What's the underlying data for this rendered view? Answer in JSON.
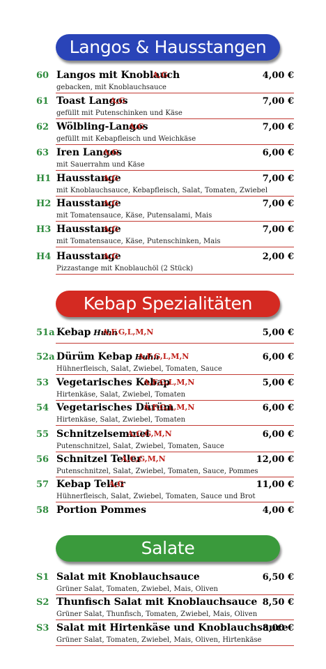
{
  "sections": [
    {
      "title": "Langos & Hausstangen",
      "color": "#2a44b8",
      "items": [
        {
          "num": "60",
          "name": "Langos mit Knoblauch",
          "sub": "",
          "allergens": "A,G",
          "price": "4,00 €",
          "desc": "gebacken, mit Knoblauchsauce"
        },
        {
          "num": "61",
          "name": "Toast Langos",
          "sub": "",
          "allergens": "A,G",
          "price": "7,00 €",
          "desc": "gefüllt mit Putenschinken und Käse"
        },
        {
          "num": "62",
          "name": "Wölbling-Langos",
          "sub": "",
          "allergens": "A,G",
          "price": "7,00 €",
          "desc": "gefüllt mit Kebapfleisch und Weichkäse"
        },
        {
          "num": "63",
          "name": "Iren Langos",
          "sub": "",
          "allergens": "A,G",
          "price": "6,00 €",
          "desc": "mit Sauerrahm und Käse"
        },
        {
          "num": "H1",
          "name": "Hausstange",
          "sub": "",
          "allergens": "A,G",
          "price": "7,00 €",
          "desc": "mit Knoblauchsauce, Kebapfleisch, Salat, Tomaten, Zwiebel"
        },
        {
          "num": "H2",
          "name": "Hausstange",
          "sub": "",
          "allergens": "A,G",
          "price": "7,00 €",
          "desc": "mit Tomatensauce, Käse, Putensalami, Mais"
        },
        {
          "num": "H3",
          "name": "Hausstange",
          "sub": "",
          "allergens": "A,G",
          "price": "7,00 €",
          "desc": "mit Tomatensauce, Käse, Putenschinken, Mais"
        },
        {
          "num": "H4",
          "name": "Hausstange",
          "sub": "",
          "allergens": "A,G",
          "price": "2,00 €",
          "desc": "Pizzastange mit Knoblauchöl (2 Stück)"
        }
      ]
    },
    {
      "title": "Kebap Spezialitäten",
      "color": "#d42a22",
      "items": [
        {
          "num": "51a",
          "name": "Kebap",
          "sub": "Huhn",
          "allergens": "A,F,G,L,M,N",
          "price": "5,00 €",
          "desc": ""
        },
        {
          "num": "52a",
          "name": "Dürüm Kebap",
          "sub": "Huhn",
          "allergens": "A,F,G,L,M,N",
          "price": "6,00 €",
          "desc": "Hühnerfleisch, Salat, Zwiebel, Tomaten, Sauce"
        },
        {
          "num": "53",
          "name": "Vegetarisches Kebap",
          "sub": "",
          "allergens": "A,F,G,L,M,N",
          "price": "5,00 €",
          "desc": "Hirtenkäse, Salat, Zwiebel, Tomaten"
        },
        {
          "num": "54",
          "name": "Vegetarisches Dürüm",
          "sub": "",
          "allergens": "A,F,G,L,M,N",
          "price": "6,00 €",
          "desc": "Hirtenkäse, Salat, Zwiebel, Tomaten"
        },
        {
          "num": "55",
          "name": "Schnitzelsemmel",
          "sub": "",
          "allergens": "A,C,G,M,N",
          "price": "6,00 €",
          "desc": "Putenschnitzel, Salat, Zwiebel, Tomaten, Sauce"
        },
        {
          "num": "56",
          "name": "Schnitzel Teller",
          "sub": "",
          "allergens": "A,C,G,M,N",
          "price": "12,00 €",
          "desc": "Putenschnitzel, Salat, Zwiebel, Tomaten, Sauce, Pommes"
        },
        {
          "num": "57",
          "name": "Kebap Teller",
          "sub": "",
          "allergens": "A,G",
          "price": "11,00 €",
          "desc": "Hühnerfleisch, Salat, Zwiebel, Tomaten, Sauce und Brot"
        },
        {
          "num": "58",
          "name": "Portion Pommes",
          "sub": "",
          "allergens": "",
          "price": "4,00 €",
          "desc": ""
        }
      ]
    },
    {
      "title": "Salate",
      "color": "#3a9a3c",
      "items": [
        {
          "num": "S1",
          "name": "Salat mit Knoblauchsauce",
          "sub": "",
          "allergens": "",
          "price": "6,50 €",
          "desc": "Grüner Salat, Tomaten, Zwiebel, Mais, Oliven"
        },
        {
          "num": "S2",
          "name": "Thunfisch Salat mit Knoblauchsauce",
          "sub": "",
          "allergens": "",
          "price": "8,50 €",
          "desc": "Grüner Salat, Thunfisch, Tomaten, Zwiebel, Mais, Oliven"
        },
        {
          "num": "S3",
          "name": "Salat mit Hirtenkäse und Knoblauchsauce",
          "sub": "",
          "allergens": "",
          "price": "8,00 €",
          "desc": "Grüner Salat, Tomaten, Zwiebel, Mais, Oliven, Hirtenkäse"
        }
      ]
    }
  ]
}
